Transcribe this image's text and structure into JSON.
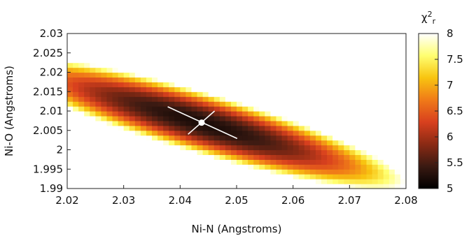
{
  "chart_data": {
    "type": "heatmap",
    "title": "",
    "xlabel": "Ni-N (Angstroms)",
    "ylabel": "Ni-O (Angstroms)",
    "xlim": [
      2.02,
      2.08
    ],
    "ylim": [
      1.99,
      2.03
    ],
    "x_ticks": [
      "2.02",
      "2.03",
      "2.04",
      "2.05",
      "2.06",
      "2.07",
      "2.08"
    ],
    "y_ticks": [
      "1.99",
      "1.995",
      "2",
      "2.005",
      "2.01",
      "2.015",
      "2.02",
      "2.025",
      "2.03"
    ],
    "colorbar": {
      "title_base": "χ",
      "title_sup": "2",
      "title_sub": "r",
      "range": [
        5,
        8
      ],
      "ticks": [
        "5",
        "5.5",
        "6",
        "6.5",
        "7",
        "7.5",
        "8"
      ],
      "colormap": [
        "#000000",
        "#3a1a12",
        "#8a2a14",
        "#d8401e",
        "#f07a18",
        "#f8c410",
        "#ffff70",
        "#ffffff"
      ]
    },
    "best_fit": {
      "x": 2.0438,
      "y": 2.007
    },
    "uncertainty_lines": [
      {
        "x1": 2.0378,
        "y1": 2.0111,
        "x2": 2.0501,
        "y2": 2.0029
      },
      {
        "x1": 2.0414,
        "y1": 2.004,
        "x2": 2.0461,
        "y2": 2.01
      }
    ],
    "grid": false,
    "legend": "none"
  }
}
